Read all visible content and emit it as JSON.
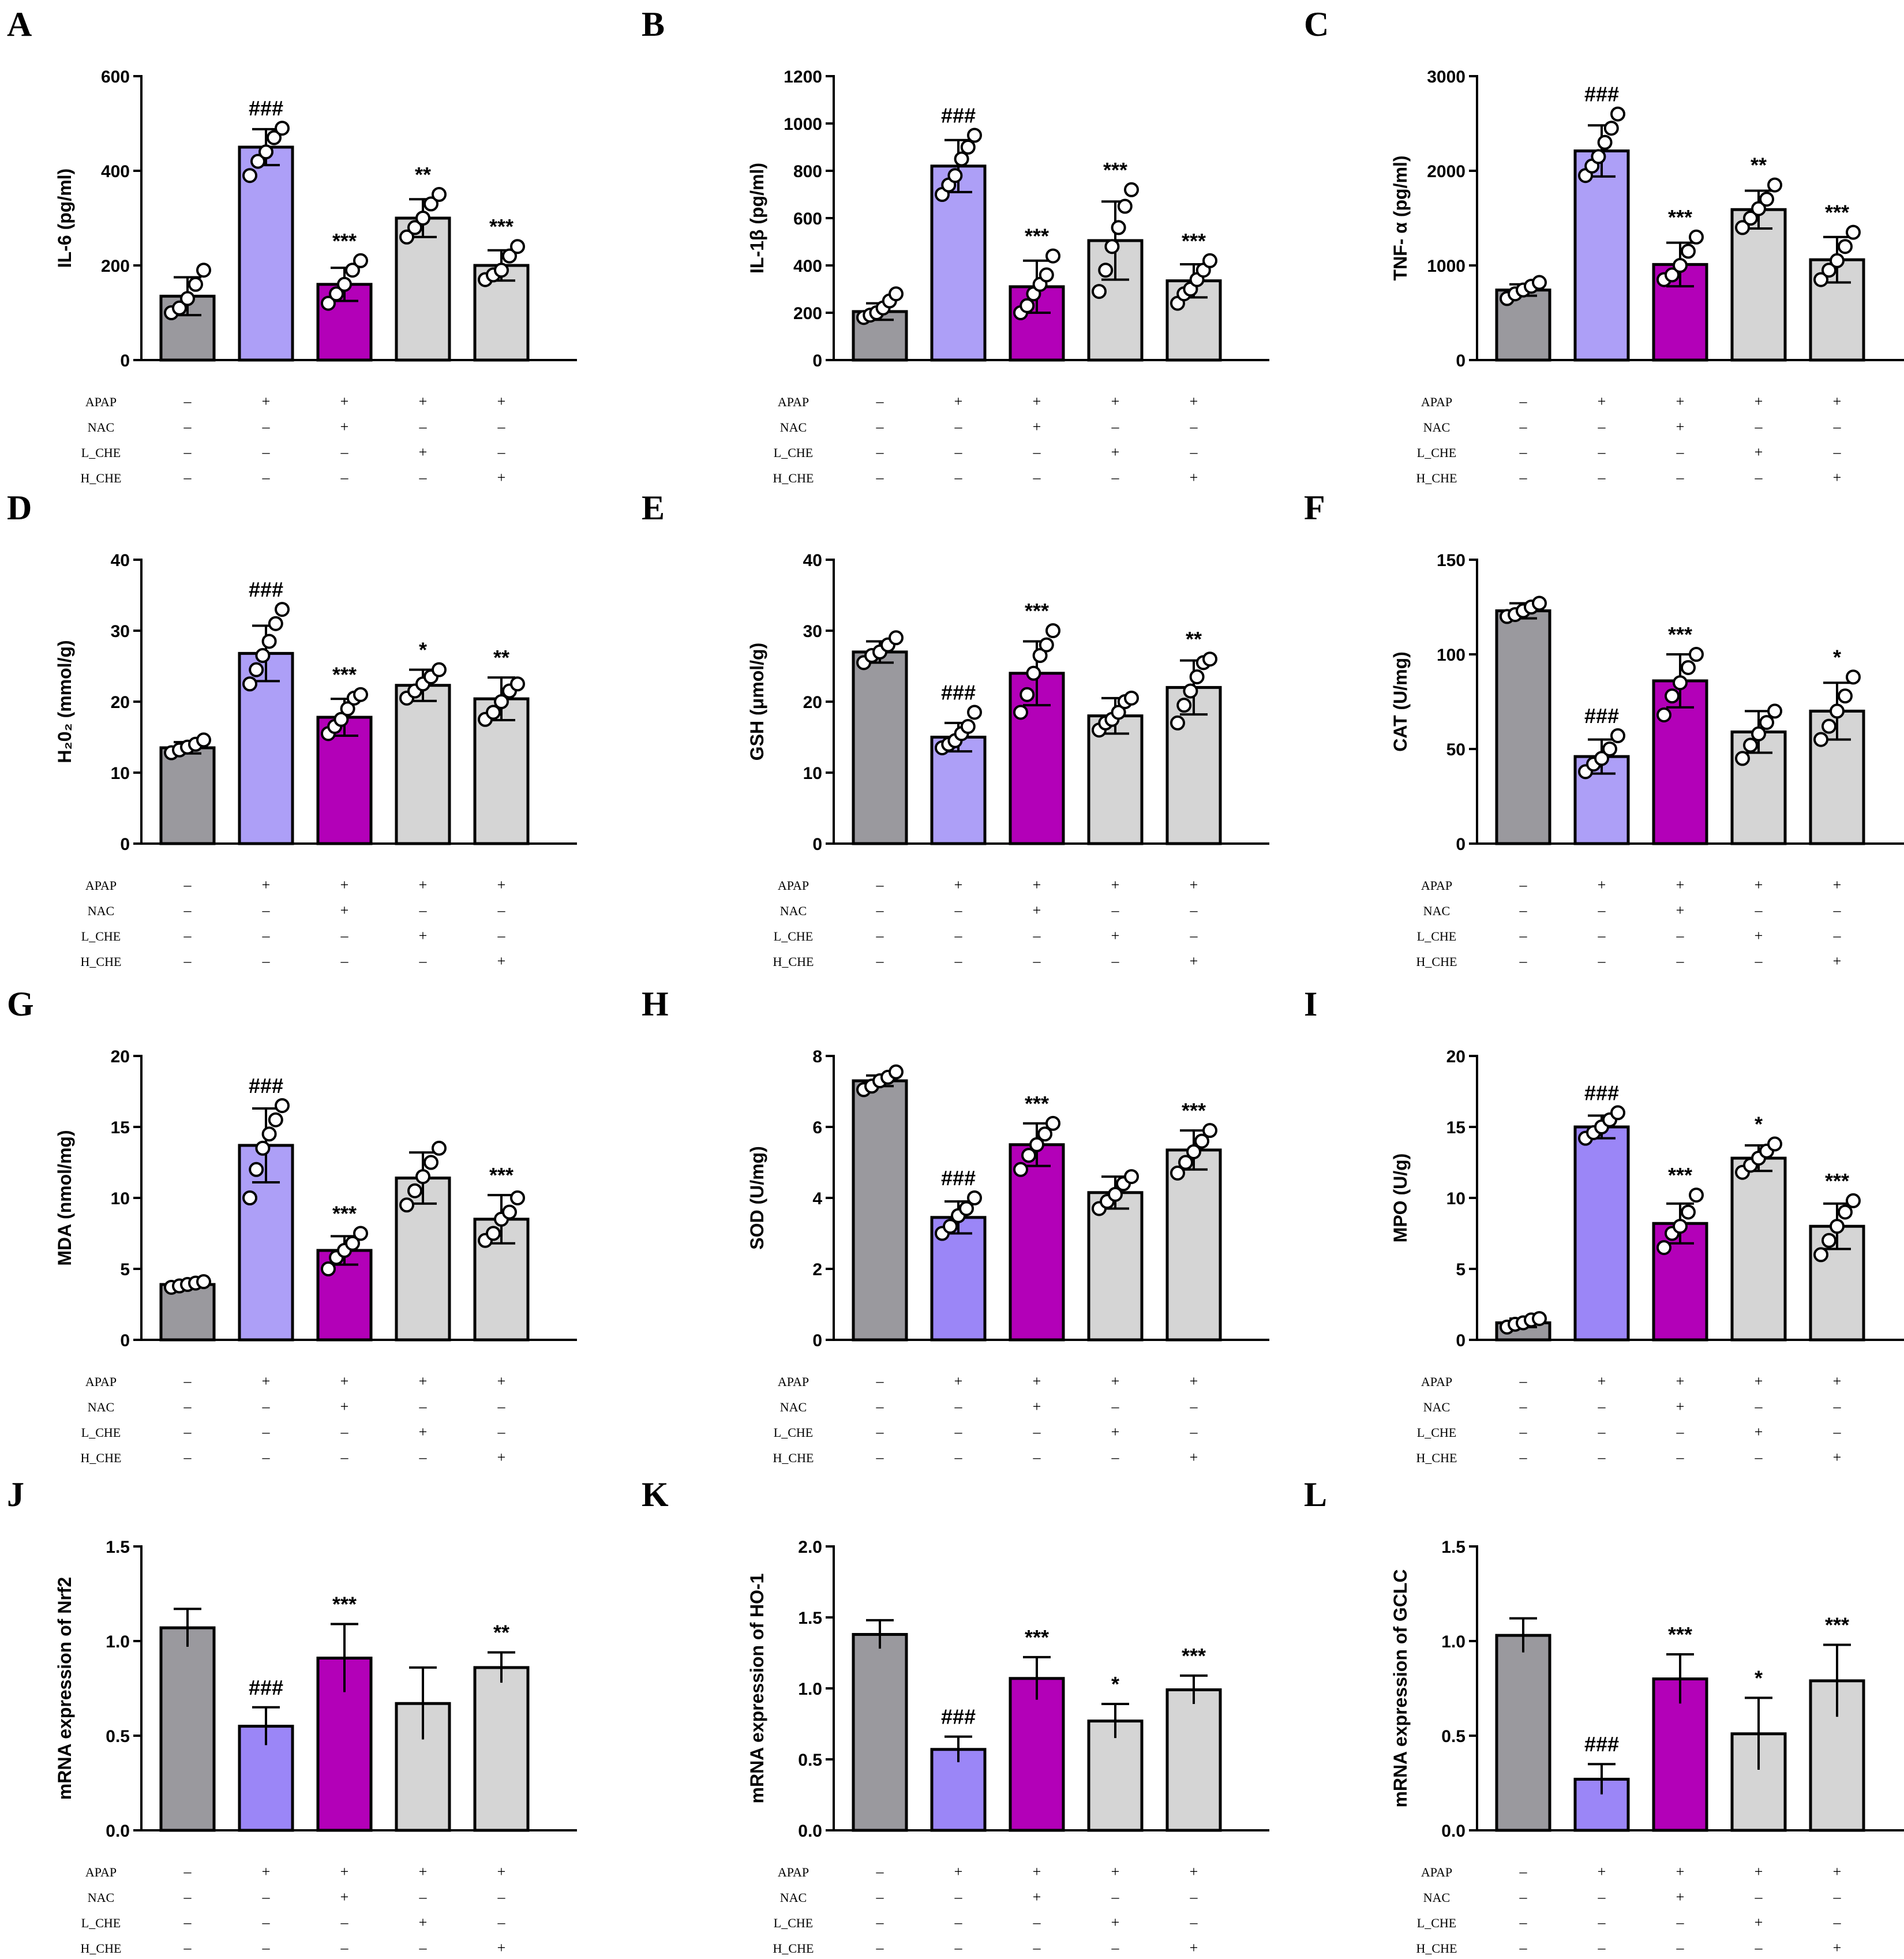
{
  "colors": {
    "control": "#9a999e",
    "apap_light": "#ad9ff7",
    "apap": "#9b86f7",
    "nac": "#b300b8",
    "che": "#d5d5d5",
    "stroke": "#000000"
  },
  "treatments": {
    "rows": [
      "APAP",
      "NAC",
      "L_CHE",
      "H_CHE"
    ],
    "symbols": [
      [
        "–",
        "+",
        "+",
        "+",
        "+"
      ],
      [
        "–",
        "–",
        "+",
        "–",
        "–"
      ],
      [
        "–",
        "–",
        "–",
        "+",
        "–"
      ],
      [
        "–",
        "–",
        "–",
        "–",
        "+"
      ]
    ]
  },
  "chart_data": [
    {
      "panel": "A",
      "type": "bar",
      "ylabel": "IL-6 (pg/ml)",
      "ylim": [
        0,
        600
      ],
      "yticks": [
        0,
        200,
        400,
        600
      ],
      "ytick_labels": [
        "0",
        "200",
        "400",
        "600"
      ],
      "bar_colors": [
        "control",
        "apap_light",
        "nac",
        "che",
        "che"
      ],
      "values": [
        135,
        450,
        160,
        300,
        200
      ],
      "errors": [
        40,
        38,
        35,
        40,
        32
      ],
      "points": [
        [
          100,
          110,
          130,
          160,
          190
        ],
        [
          390,
          420,
          440,
          470,
          490
        ],
        [
          120,
          140,
          160,
          190,
          210
        ],
        [
          260,
          280,
          300,
          330,
          350
        ],
        [
          170,
          180,
          190,
          220,
          240
        ]
      ],
      "significance": [
        "",
        "###",
        "***",
        "**",
        "***"
      ]
    },
    {
      "panel": "B",
      "type": "bar",
      "ylabel": "IL-1β (pg/ml)",
      "ylim": [
        0,
        1200
      ],
      "yticks": [
        0,
        200,
        400,
        600,
        800,
        1000,
        1200
      ],
      "ytick_labels": [
        "0",
        "200",
        "400",
        "600",
        "800",
        "1000",
        "1200"
      ],
      "bar_colors": [
        "control",
        "apap_light",
        "nac",
        "che",
        "che"
      ],
      "values": [
        205,
        820,
        310,
        505,
        335
      ],
      "errors": [
        35,
        110,
        110,
        165,
        70
      ],
      "points": [
        [
          180,
          190,
          200,
          220,
          250,
          280
        ],
        [
          700,
          740,
          780,
          850,
          900,
          950
        ],
        [
          200,
          230,
          280,
          320,
          360,
          440
        ],
        [
          290,
          380,
          480,
          560,
          650,
          720
        ],
        [
          240,
          280,
          300,
          340,
          380,
          420
        ]
      ],
      "significance": [
        "",
        "###",
        "***",
        "***",
        "***"
      ]
    },
    {
      "panel": "C",
      "type": "bar",
      "ylabel": "TNF- α (pg/ml)",
      "ylim": [
        0,
        3000
      ],
      "yticks": [
        0,
        1000,
        2000,
        3000
      ],
      "ytick_labels": [
        "0",
        "1000",
        "2000",
        "3000"
      ],
      "bar_colors": [
        "control",
        "apap_light",
        "nac",
        "che",
        "che"
      ],
      "values": [
        740,
        2210,
        1010,
        1590,
        1060
      ],
      "errors": [
        60,
        270,
        230,
        200,
        240
      ],
      "points": [
        [
          650,
          700,
          740,
          780,
          820
        ],
        [
          1950,
          2050,
          2150,
          2300,
          2450,
          2600
        ],
        [
          850,
          900,
          1000,
          1150,
          1300
        ],
        [
          1400,
          1500,
          1600,
          1700,
          1850
        ],
        [
          850,
          950,
          1050,
          1200,
          1350
        ]
      ],
      "significance": [
        "",
        "###",
        "***",
        "**",
        "***"
      ]
    },
    {
      "panel": "D",
      "type": "bar",
      "ylabel": "H₂0₂ (mmol/g)",
      "ylim": [
        0,
        40
      ],
      "yticks": [
        0,
        10,
        20,
        30,
        40
      ],
      "ytick_labels": [
        "0",
        "10",
        "20",
        "30",
        "40"
      ],
      "bar_colors": [
        "control",
        "apap_light",
        "nac",
        "che",
        "che"
      ],
      "values": [
        13.5,
        26.8,
        17.8,
        22.3,
        20.4
      ],
      "errors": [
        0.8,
        3.9,
        2.6,
        2.2,
        3.0
      ],
      "points": [
        [
          12.8,
          13.2,
          13.6,
          14.0,
          14.6
        ],
        [
          22.5,
          24.5,
          26.5,
          28.5,
          31.0,
          33.0
        ],
        [
          15.5,
          16.5,
          17.5,
          19.0,
          20.5,
          21.0
        ],
        [
          20.5,
          21.5,
          22.5,
          23.5,
          24.5
        ],
        [
          17.5,
          18.5,
          20.0,
          21.5,
          22.5
        ]
      ],
      "significance": [
        "",
        "###",
        "***",
        "*",
        "**"
      ]
    },
    {
      "panel": "E",
      "type": "bar",
      "ylabel": "GSH (μmol/g)",
      "ylim": [
        0,
        40
      ],
      "yticks": [
        0,
        10,
        20,
        30,
        40
      ],
      "ytick_labels": [
        "0",
        "10",
        "20",
        "30",
        "40"
      ],
      "bar_colors": [
        "control",
        "apap_light",
        "nac",
        "che",
        "che"
      ],
      "values": [
        27.0,
        15.0,
        24.0,
        18.0,
        22.0
      ],
      "errors": [
        1.5,
        2.0,
        4.5,
        2.5,
        3.8
      ],
      "points": [
        [
          25.5,
          26.5,
          27.0,
          28.0,
          29.0
        ],
        [
          13.5,
          14.0,
          14.5,
          15.5,
          16.5,
          18.5
        ],
        [
          18.5,
          21.0,
          24.0,
          26.5,
          28.0,
          30.0
        ],
        [
          16.0,
          17.0,
          17.5,
          18.5,
          20.0,
          20.5
        ],
        [
          17.0,
          19.5,
          21.5,
          23.5,
          25.5,
          26.0
        ]
      ],
      "significance": [
        "",
        "###",
        "***",
        "",
        "**"
      ]
    },
    {
      "panel": "F",
      "type": "bar",
      "ylabel": "CAT (U/mg)",
      "ylim": [
        0,
        150
      ],
      "yticks": [
        0,
        50,
        100,
        150
      ],
      "ytick_labels": [
        "0",
        "50",
        "100",
        "150"
      ],
      "bar_colors": [
        "control",
        "apap_light",
        "nac",
        "che",
        "che"
      ],
      "values": [
        123,
        46,
        86,
        59,
        70
      ],
      "errors": [
        4,
        9,
        14,
        11,
        15
      ],
      "points": [
        [
          120,
          121,
          123,
          125,
          127
        ],
        [
          38,
          42,
          45,
          50,
          57
        ],
        [
          68,
          78,
          85,
          93,
          100
        ],
        [
          45,
          52,
          58,
          64,
          70
        ],
        [
          55,
          62,
          70,
          78,
          88
        ]
      ],
      "significance": [
        "",
        "###",
        "***",
        "",
        "*"
      ]
    },
    {
      "panel": "G",
      "type": "bar",
      "ylabel": "MDA (nmol/mg)",
      "ylim": [
        0,
        20
      ],
      "yticks": [
        0,
        5,
        10,
        15,
        20
      ],
      "ytick_labels": [
        "0",
        "5",
        "10",
        "15",
        "20"
      ],
      "bar_colors": [
        "control",
        "apap_light",
        "nac",
        "che",
        "che"
      ],
      "values": [
        3.9,
        13.7,
        6.3,
        11.4,
        8.5
      ],
      "errors": [
        0.2,
        2.6,
        1.0,
        1.8,
        1.7
      ],
      "points": [
        [
          3.7,
          3.8,
          3.9,
          4.0,
          4.1
        ],
        [
          10.0,
          12.0,
          13.5,
          14.5,
          15.5,
          16.5
        ],
        [
          5.0,
          5.8,
          6.3,
          6.8,
          7.5
        ],
        [
          9.5,
          10.5,
          11.5,
          12.5,
          13.5
        ],
        [
          7.0,
          7.5,
          8.5,
          9.0,
          10.0
        ]
      ],
      "significance": [
        "",
        "###",
        "***",
        "",
        "***"
      ]
    },
    {
      "panel": "H",
      "type": "bar",
      "ylabel": "SOD (U/mg)",
      "ylim": [
        0,
        8
      ],
      "yticks": [
        0,
        2,
        4,
        6,
        8
      ],
      "ytick_labels": [
        "0",
        "2",
        "4",
        "6",
        "8"
      ],
      "bar_colors": [
        "control",
        "apap",
        "nac",
        "che",
        "che"
      ],
      "values": [
        7.3,
        3.45,
        5.5,
        4.15,
        5.35
      ],
      "errors": [
        0.15,
        0.45,
        0.6,
        0.45,
        0.55
      ],
      "points": [
        [
          7.05,
          7.15,
          7.3,
          7.4,
          7.55
        ],
        [
          3.0,
          3.2,
          3.5,
          3.7,
          4.0
        ],
        [
          4.8,
          5.2,
          5.5,
          5.8,
          6.1
        ],
        [
          3.7,
          3.9,
          4.1,
          4.4,
          4.6
        ],
        [
          4.7,
          5.0,
          5.3,
          5.6,
          5.9
        ]
      ],
      "significance": [
        "",
        "###",
        "***",
        "",
        "***"
      ]
    },
    {
      "panel": "I",
      "type": "bar",
      "ylabel": "MPO (U/g)",
      "ylim": [
        0,
        20
      ],
      "yticks": [
        0,
        5,
        10,
        15,
        20
      ],
      "ytick_labels": [
        "0",
        "5",
        "10",
        "15",
        "20"
      ],
      "bar_colors": [
        "control",
        "apap",
        "nac",
        "che",
        "che"
      ],
      "values": [
        1.2,
        15.0,
        8.2,
        12.8,
        8.0
      ],
      "errors": [
        0.3,
        0.8,
        1.4,
        0.9,
        1.6
      ],
      "points": [
        [
          0.9,
          1.1,
          1.2,
          1.4,
          1.5
        ],
        [
          14.2,
          14.6,
          15.0,
          15.5,
          16.0
        ],
        [
          6.5,
          7.5,
          8.0,
          9.0,
          10.2
        ],
        [
          11.8,
          12.3,
          12.8,
          13.3,
          13.8
        ],
        [
          6.0,
          7.0,
          8.0,
          9.0,
          9.8
        ]
      ],
      "significance": [
        "",
        "###",
        "***",
        "*",
        "***"
      ]
    },
    {
      "panel": "J",
      "type": "bar",
      "ylabel": "mRNA expression of Nrf2",
      "ylim": [
        0,
        1.5
      ],
      "yticks": [
        0,
        0.5,
        1.0,
        1.5
      ],
      "ytick_labels": [
        "0.0",
        "0.5",
        "1.0",
        "1.5"
      ],
      "bar_colors": [
        "control",
        "apap",
        "nac",
        "che",
        "che"
      ],
      "values": [
        1.07,
        0.55,
        0.91,
        0.67,
        0.86
      ],
      "errors": [
        0.1,
        0.1,
        0.18,
        0.19,
        0.08
      ],
      "points": [
        [],
        [],
        [],
        [],
        []
      ],
      "significance": [
        "",
        "###",
        "***",
        "",
        "**"
      ]
    },
    {
      "panel": "K",
      "type": "bar",
      "ylabel": "mRNA expression of HO-1",
      "ylim": [
        0,
        2.0
      ],
      "yticks": [
        0,
        0.5,
        1.0,
        1.5,
        2.0
      ],
      "ytick_labels": [
        "0.0",
        "0.5",
        "1.0",
        "1.5",
        "2.0"
      ],
      "bar_colors": [
        "control",
        "apap",
        "nac",
        "che",
        "che"
      ],
      "values": [
        1.38,
        0.57,
        1.07,
        0.77,
        0.99
      ],
      "errors": [
        0.1,
        0.09,
        0.15,
        0.12,
        0.1
      ],
      "points": [
        [],
        [],
        [],
        [],
        []
      ],
      "significance": [
        "",
        "###",
        "***",
        "*",
        "***"
      ]
    },
    {
      "panel": "L",
      "type": "bar",
      "ylabel": "mRNA expression of GCLC",
      "ylim": [
        0,
        1.5
      ],
      "yticks": [
        0,
        0.5,
        1.0,
        1.5
      ],
      "ytick_labels": [
        "0.0",
        "0.5",
        "1.0",
        "1.5"
      ],
      "bar_colors": [
        "control",
        "apap",
        "nac",
        "che",
        "che"
      ],
      "values": [
        1.03,
        0.27,
        0.8,
        0.51,
        0.79
      ],
      "errors": [
        0.09,
        0.08,
        0.13,
        0.19,
        0.19
      ],
      "points": [
        [],
        [],
        [],
        [],
        []
      ],
      "significance": [
        "",
        "###",
        "***",
        "*",
        "***"
      ]
    }
  ]
}
